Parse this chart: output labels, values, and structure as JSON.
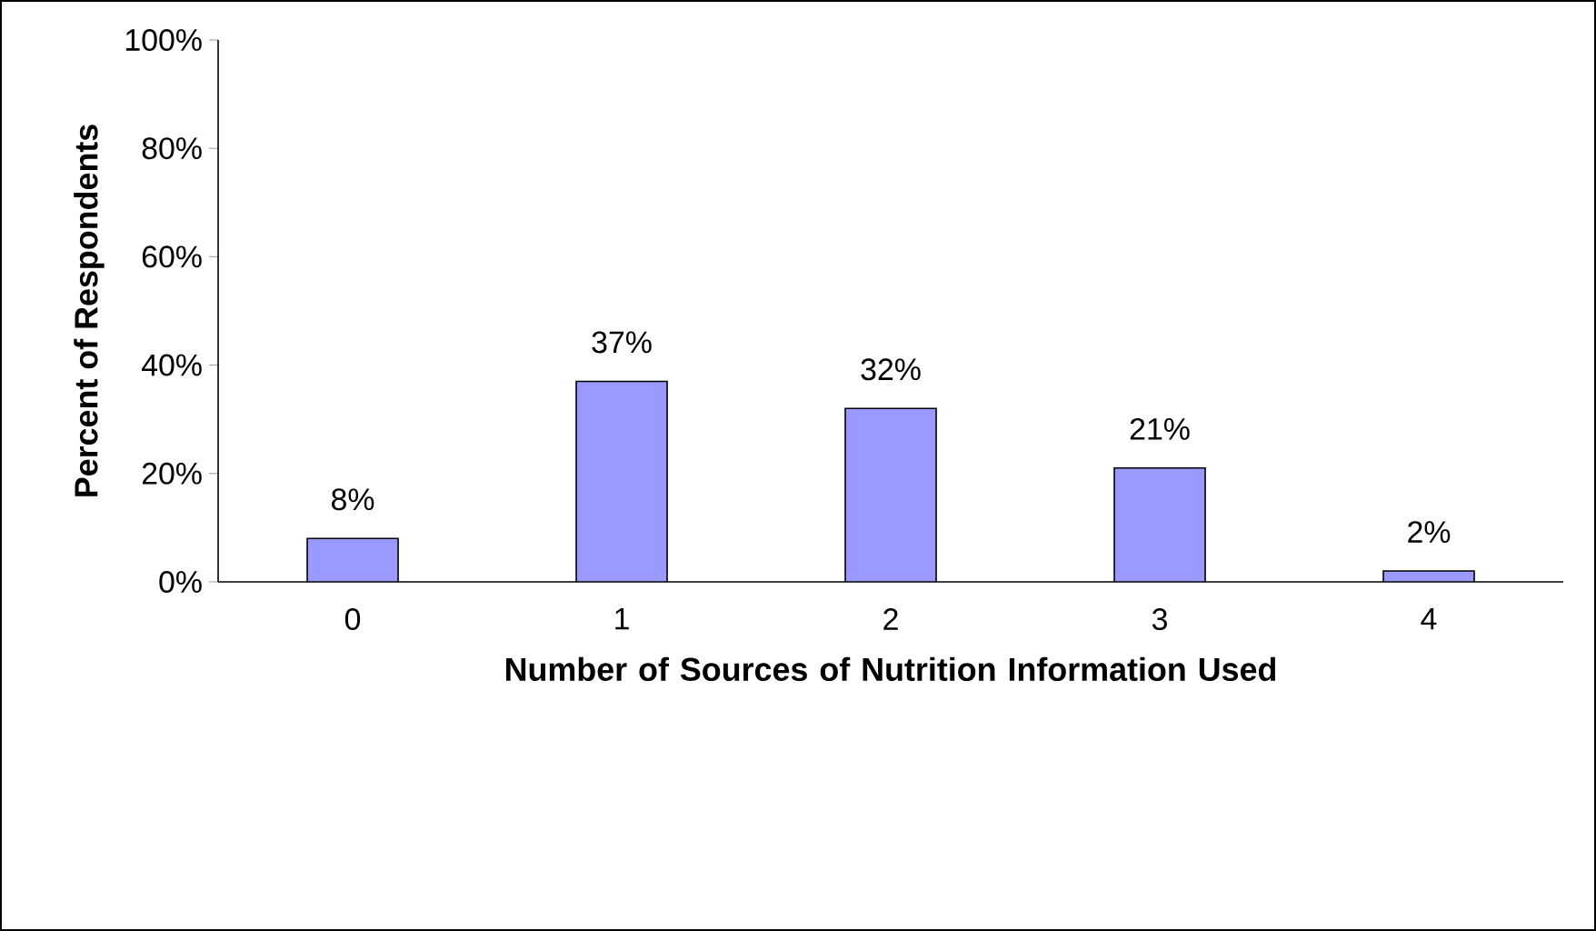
{
  "chart_data": {
    "type": "bar",
    "xlabel": "Number of Sources of Nutrition Information Used",
    "ylabel": "Percent of Respondents",
    "categories": [
      "0",
      "1",
      "2",
      "3",
      "4"
    ],
    "values": [
      8,
      37,
      32,
      21,
      2
    ],
    "value_labels": [
      "8%",
      "37%",
      "32%",
      "21%",
      "2%"
    ],
    "color": "#9999ff",
    "ylim": [
      0,
      100
    ],
    "yticks": [
      {
        "value": 0,
        "label": "0%"
      },
      {
        "value": 20,
        "label": "20%"
      },
      {
        "value": 40,
        "label": "40%"
      },
      {
        "value": 60,
        "label": "60%"
      },
      {
        "value": 80,
        "label": "80%"
      },
      {
        "value": 100,
        "label": "100%"
      }
    ],
    "grid": false
  }
}
